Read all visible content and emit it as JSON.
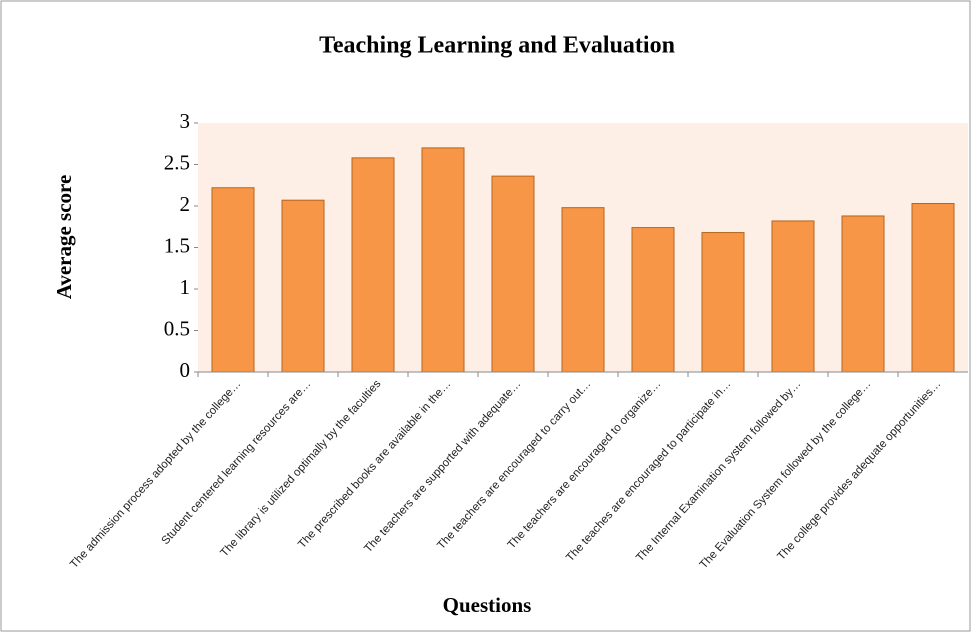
{
  "chart_data": {
    "type": "bar",
    "title": "Teaching Learning and Evaluation",
    "ylabel": "Average  score",
    "xlabel": "Questions",
    "categories": [
      "The admission process adopted by the college…",
      "Student centered learning resources are…",
      "The library is utilized optimally by the faculties",
      "The prescribed books are available in the…",
      "The teachers are supported with adequate…",
      "The teachers are encouraged to carry out…",
      "The teachers are encouraged to organize…",
      "The teaches are encouraged to participate in…",
      "The Internal Examination system followed by…",
      "The Evaluation System followed by the college…",
      "The college provides adequate opportunities…"
    ],
    "values": [
      2.22,
      2.07,
      2.58,
      2.7,
      2.36,
      1.98,
      1.74,
      1.68,
      1.82,
      1.88,
      2.03
    ],
    "color": "#f79646",
    "background": "#fdeee6",
    "ylim": [
      0,
      3
    ],
    "yticks": [
      0,
      0.5,
      1,
      1.5,
      2,
      2.5,
      3
    ]
  }
}
